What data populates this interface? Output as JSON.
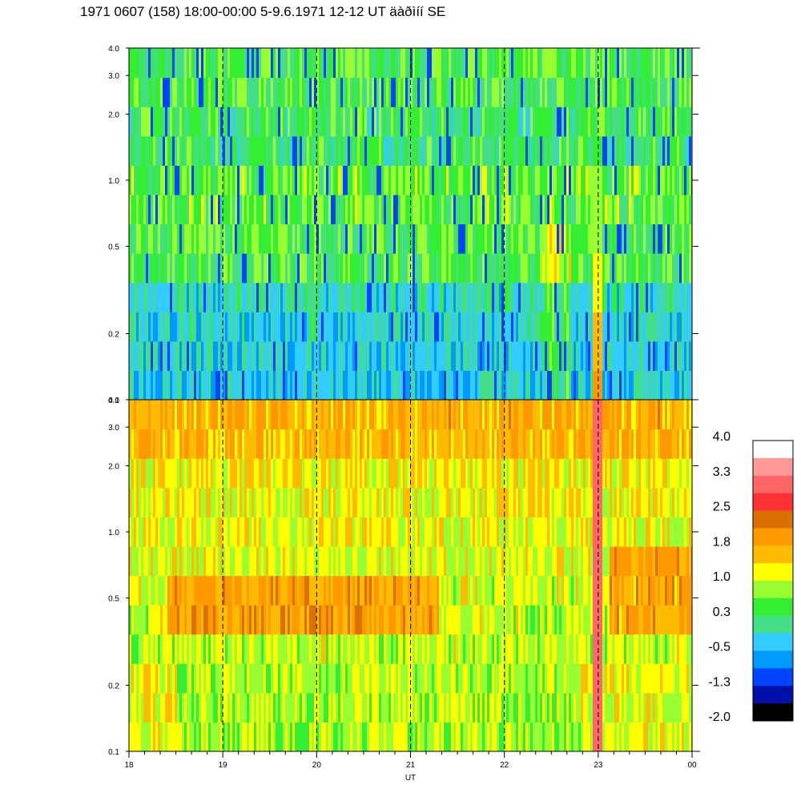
{
  "title": "1971 0607 (158) 18:00-00:00 5-9.6.1971  12-12 UT äàðìíí SE",
  "chart_data": {
    "type": "heatmap",
    "panels": [
      {
        "name": "",
        "ylim": [
          0.1,
          4.0
        ],
        "yscale": "log"
      },
      {
        "name": "",
        "ylim": [
          0.1,
          4.0
        ],
        "yscale": "log"
      }
    ],
    "xlabel": "UT",
    "x_tick_labels": [
      "18",
      "19",
      "20",
      "21",
      "22",
      "23",
      "00"
    ],
    "x_ticks_hours": [
      18,
      19,
      20,
      21,
      22,
      23,
      24
    ],
    "y_tick_labels": [
      "4.0",
      "3.0",
      "2.0",
      "1.0",
      "0.5",
      "0.2",
      "0.1"
    ],
    "y_ticks": [
      4.0,
      3.0,
      2.0,
      1.0,
      0.5,
      0.2,
      0.1
    ],
    "dashed_hour_lines": [
      19,
      20,
      21,
      22,
      23
    ],
    "colorbar": {
      "labels": [
        "4.0",
        "3.3",
        "2.5",
        "1.8",
        "1.0",
        "0.3",
        "-0.5",
        "-1.3",
        "-2.0"
      ],
      "colors": [
        "#ffffff",
        "#ff9999",
        "#ff6666",
        "#ff3333",
        "#d97000",
        "#ff9900",
        "#ffbb00",
        "#ffff00",
        "#99ff33",
        "#33ee33",
        "#44dd88",
        "#33ccff",
        "#0099ff",
        "#0044ff",
        "#0011aa",
        "#000000"
      ]
    },
    "grid": false
  }
}
